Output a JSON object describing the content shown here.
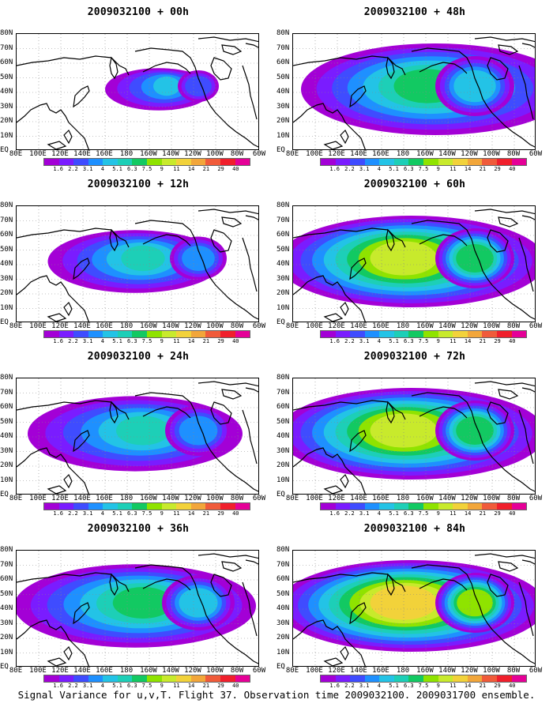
{
  "colorbar": {
    "colors": [
      "#a300d6",
      "#7a1cff",
      "#3f4cff",
      "#1e90ff",
      "#23c3e6",
      "#1dcfb7",
      "#12c962",
      "#8fe300",
      "#c8ea2c",
      "#f2d23a",
      "#f2a63a",
      "#f05b3a",
      "#f01f2c",
      "#e50097"
    ],
    "labels": [
      "1.6",
      "2.2",
      "3.1",
      "4",
      "5.1",
      "6.3",
      "7.5",
      "9",
      "11",
      "14",
      "21",
      "29",
      "40"
    ]
  },
  "axes": {
    "lat_labels": [
      "80N",
      "70N",
      "60N",
      "50N",
      "40N",
      "30N",
      "20N",
      "10N",
      "EQ"
    ],
    "lon_labels": [
      "80E",
      "100E",
      "120E",
      "140E",
      "160E",
      "180",
      "160W",
      "140W",
      "120W",
      "100W",
      "80W",
      "60W"
    ]
  },
  "panels": [
    {
      "title": "2009032100 + 00h"
    },
    {
      "title": "2009032100 + 48h"
    },
    {
      "title": "2009032100 + 12h"
    },
    {
      "title": "2009032100 + 60h"
    },
    {
      "title": "2009032100 + 24h"
    },
    {
      "title": "2009032100 + 72h"
    },
    {
      "title": "2009032100 + 36h"
    },
    {
      "title": "2009032100 + 84h"
    }
  ],
  "caption": "Signal Variance for u,v,T. Flight 37. Observation time 2009032100. 2009031700 ensemble.",
  "chart_data": {
    "type": "heatmap",
    "x": [
      "80E",
      "100E",
      "120E",
      "140E",
      "160E",
      "180",
      "160W",
      "140W",
      "120W",
      "100W",
      "80W",
      "60W"
    ],
    "y": [
      "80N",
      "70N",
      "60N",
      "50N",
      "40N",
      "30N",
      "20N",
      "10N",
      "EQ"
    ],
    "levels": [
      "1.6",
      "2.2",
      "3.1",
      "4",
      "5.1",
      "6.3",
      "7.5",
      "9",
      "11",
      "14",
      "21",
      "29",
      "40"
    ],
    "series": [
      {
        "name": "2009032100 + 00h"
      },
      {
        "name": "2009032100 + 12h"
      },
      {
        "name": "2009032100 + 24h"
      },
      {
        "name": "2009032100 + 36h"
      },
      {
        "name": "2009032100 + 48h"
      },
      {
        "name": "2009032100 + 60h"
      },
      {
        "name": "2009032100 + 72h"
      },
      {
        "name": "2009032100 + 84h"
      }
    ]
  }
}
